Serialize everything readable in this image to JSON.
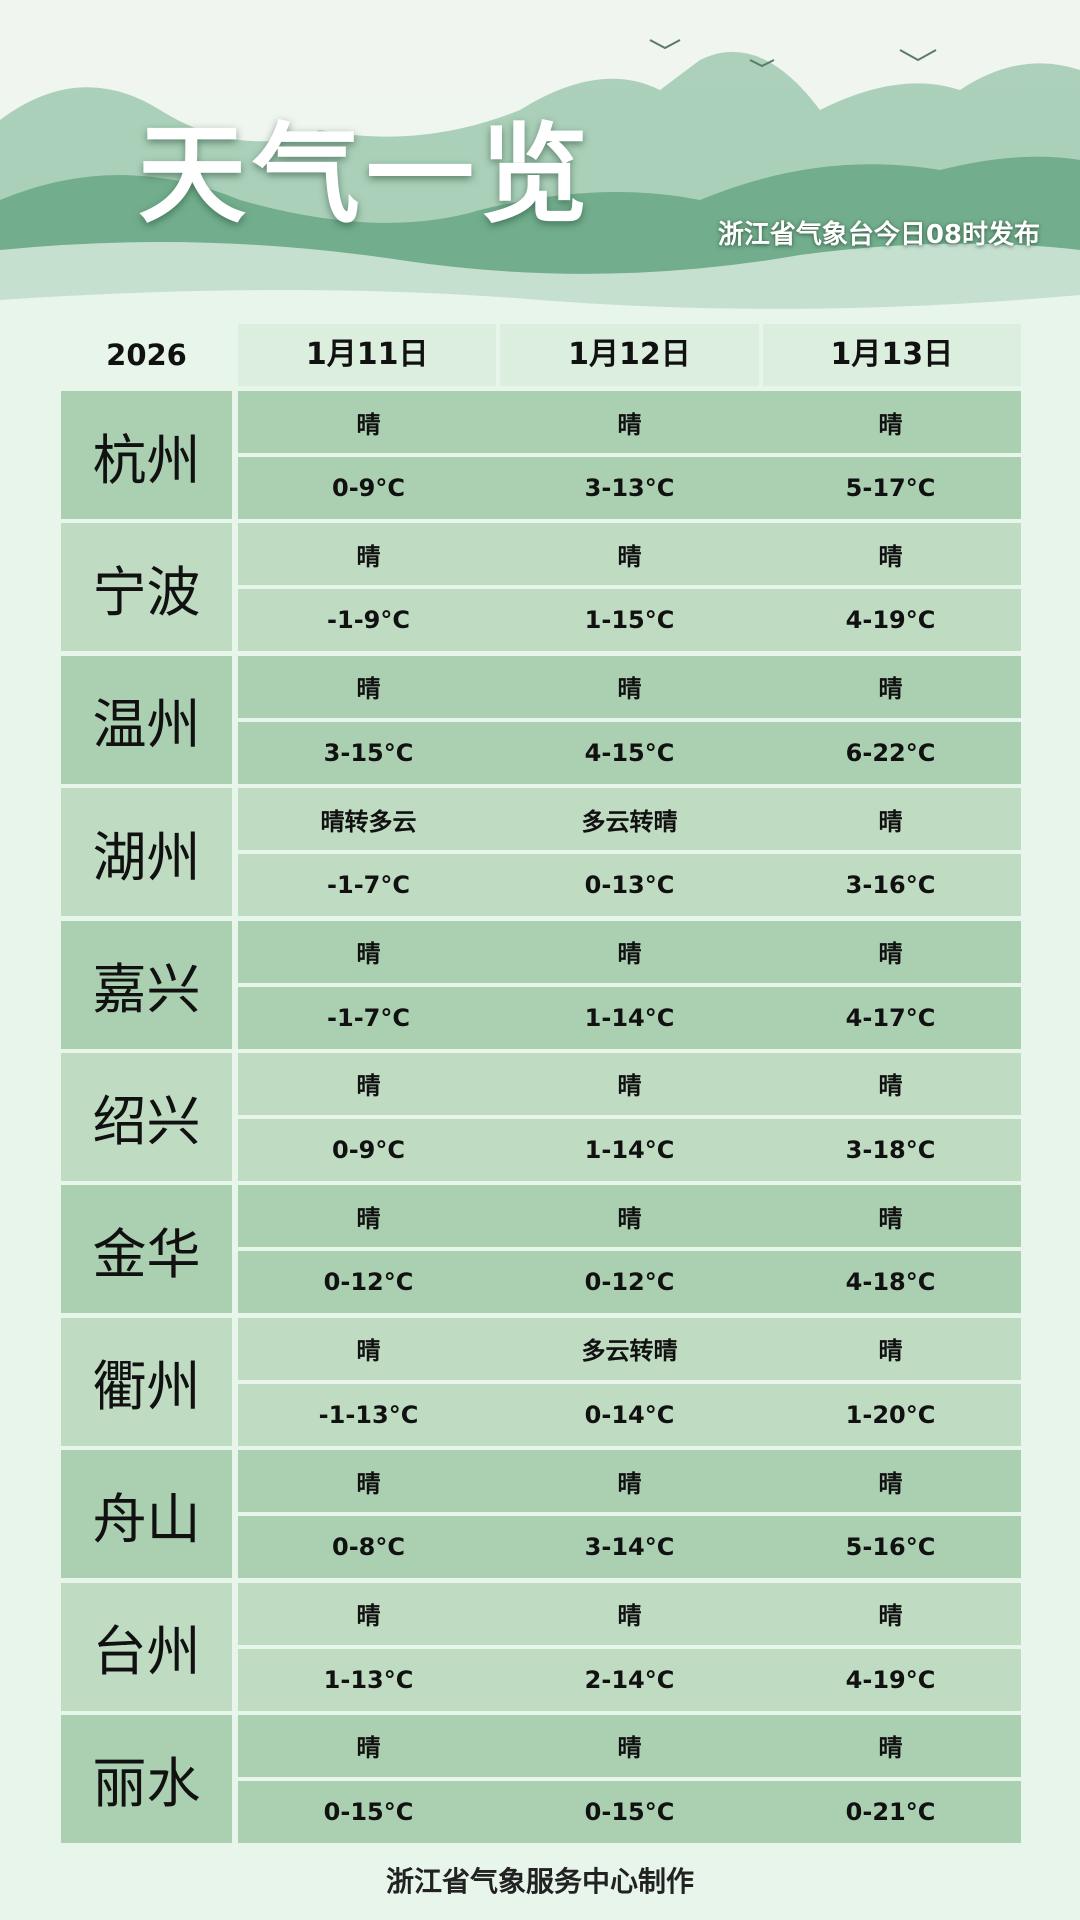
{
  "header": {
    "title": "天气一览",
    "subtitle": "浙江省气象台今日08时发布"
  },
  "table": {
    "year": "2026",
    "dates": [
      "1月11日",
      "1月12日",
      "1月13日"
    ],
    "cities": [
      {
        "name": "杭州",
        "weather": [
          "晴",
          "晴",
          "晴"
        ],
        "temp": [
          "0-9°C",
          "3-13°C",
          "5-17°C"
        ]
      },
      {
        "name": "宁波",
        "weather": [
          "晴",
          "晴",
          "晴"
        ],
        "temp": [
          "-1-9°C",
          "1-15°C",
          "4-19°C"
        ]
      },
      {
        "name": "温州",
        "weather": [
          "晴",
          "晴",
          "晴"
        ],
        "temp": [
          "3-15°C",
          "4-15°C",
          "6-22°C"
        ]
      },
      {
        "name": "湖州",
        "weather": [
          "晴转多云",
          "多云转晴",
          "晴"
        ],
        "temp": [
          "-1-7°C",
          "0-13°C",
          "3-16°C"
        ]
      },
      {
        "name": "嘉兴",
        "weather": [
          "晴",
          "晴",
          "晴"
        ],
        "temp": [
          "-1-7°C",
          "1-14°C",
          "4-17°C"
        ]
      },
      {
        "name": "绍兴",
        "weather": [
          "晴",
          "晴",
          "晴"
        ],
        "temp": [
          "0-9°C",
          "1-14°C",
          "3-18°C"
        ]
      },
      {
        "name": "金华",
        "weather": [
          "晴",
          "晴",
          "晴"
        ],
        "temp": [
          "0-12°C",
          "0-12°C",
          "4-18°C"
        ]
      },
      {
        "name": "衢州",
        "weather": [
          "晴",
          "多云转晴",
          "晴"
        ],
        "temp": [
          "-1-13°C",
          "0-14°C",
          "1-20°C"
        ]
      },
      {
        "name": "舟山",
        "weather": [
          "晴",
          "晴",
          "晴"
        ],
        "temp": [
          "0-8°C",
          "3-14°C",
          "5-16°C"
        ]
      },
      {
        "name": "台州",
        "weather": [
          "晴",
          "晴",
          "晴"
        ],
        "temp": [
          "1-13°C",
          "2-14°C",
          "4-19°C"
        ]
      },
      {
        "name": "丽水",
        "weather": [
          "晴",
          "晴",
          "晴"
        ],
        "temp": [
          "0-15°C",
          "0-15°C",
          "0-21°C"
        ]
      }
    ]
  },
  "footer": "浙江省气象服务中心制作",
  "colors": {
    "row_dark": "#abcfb1",
    "row_light": "#bfdcc2",
    "background": "#e7f5eb"
  }
}
